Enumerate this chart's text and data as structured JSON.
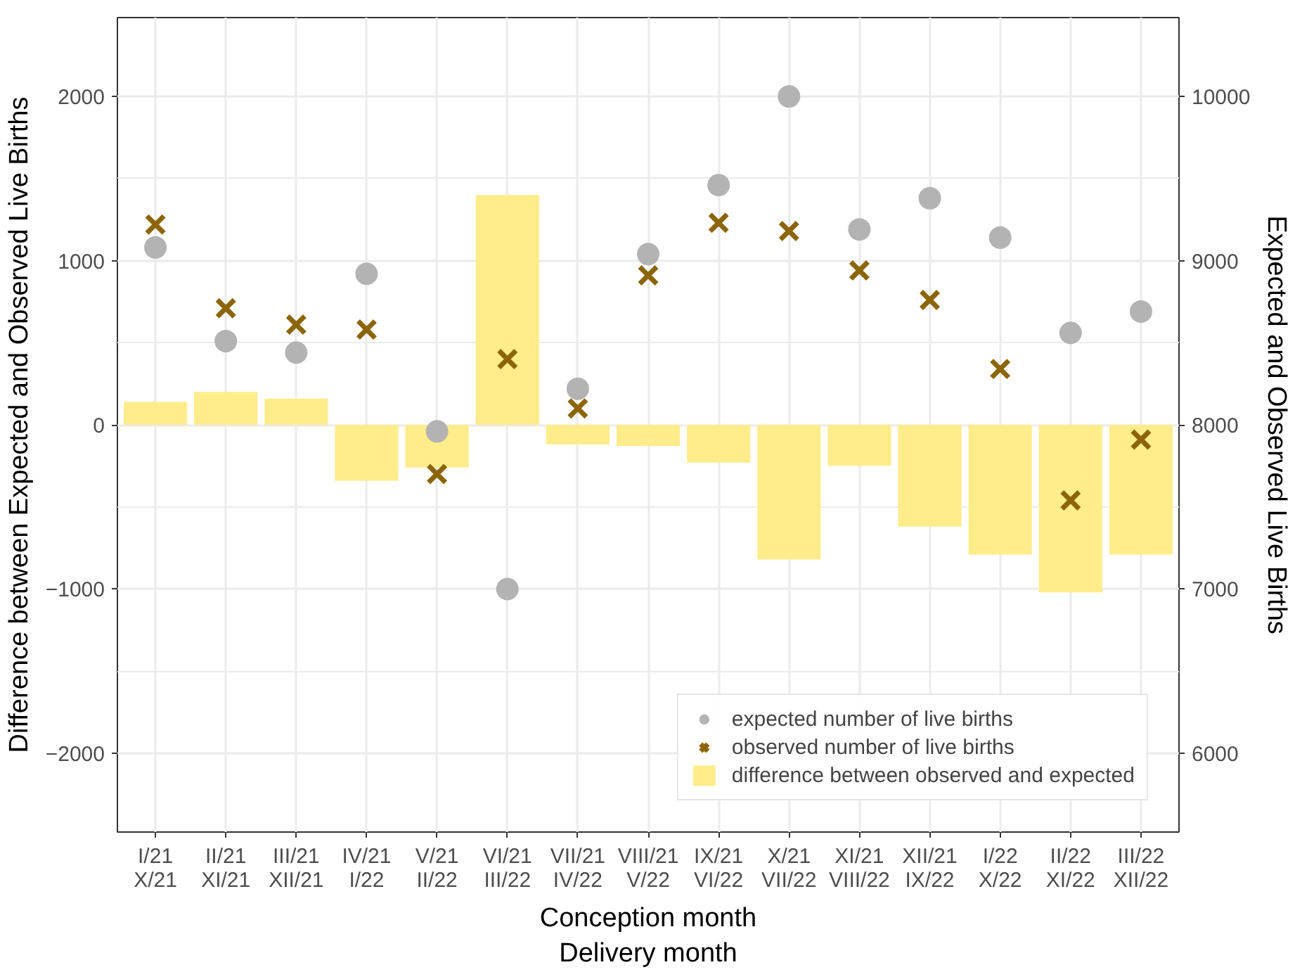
{
  "chart_data": {
    "type": "bar",
    "categories": [
      "I/21\nX/21",
      "II/21\nXI/21",
      "III/21\nXII/21",
      "IV/21\nI/22",
      "V/21\nII/22",
      "VI/21\nIII/22",
      "VII/21\nIV/22",
      "VIII/21\nV/22",
      "IX/21\nVI/22",
      "X/21\nVII/22",
      "XI/21\nVIII/22",
      "XII/21\nIX/22",
      "I/22\nX/22",
      "II/22\nXI/22",
      "III/22\nXII/22"
    ],
    "xlabel": "Conception month\nDelivery month",
    "ylabel": "Difference between Expected and Observed Live Births",
    "y2label": "Expected and Observed Live Births",
    "ylim": [
      -2480,
      2480
    ],
    "yticks": [
      -2000,
      -1000,
      0,
      1000,
      2000
    ],
    "y2lim": [
      5520,
      10480
    ],
    "y2ticks": [
      6000,
      7000,
      8000,
      9000,
      10000
    ],
    "grid": true,
    "legend": "bottom right",
    "series": [
      {
        "name": "expected number of live births",
        "type": "scatter",
        "marker": "circle",
        "axis": "y2",
        "color": "#b3b3b3",
        "values": [
          9080,
          8510,
          8440,
          8920,
          7960,
          7000,
          8220,
          9040,
          9460,
          10000,
          9190,
          9380,
          9140,
          8560,
          8690
        ]
      },
      {
        "name": "observed number of live births",
        "type": "scatter",
        "marker": "cross",
        "axis": "y2",
        "color": "#8b6508",
        "values": [
          9220,
          8710,
          8610,
          8580,
          7700,
          8400,
          8100,
          8910,
          9230,
          9180,
          8940,
          8760,
          8340,
          7540,
          7910
        ]
      },
      {
        "name": "difference between observed and expected",
        "color": "#ffec8b",
        "values": [
          140,
          200,
          160,
          -340,
          -260,
          1400,
          -120,
          -130,
          -230,
          -820,
          -250,
          -620,
          -790,
          -1020,
          -790
        ]
      }
    ]
  }
}
